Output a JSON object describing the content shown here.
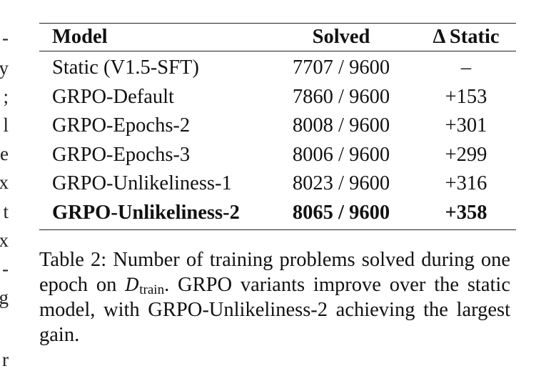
{
  "left_fragments": [
    "-",
    "y",
    ";",
    "l",
    "e",
    "x",
    "t",
    "x",
    "-",
    "g",
    "r"
  ],
  "table": {
    "headers": [
      "Model",
      "Solved",
      "Δ Static"
    ],
    "rows": [
      {
        "model": "Static (V1.5-SFT)",
        "solved": "7707 / 9600",
        "delta": "–",
        "bold": false
      },
      {
        "model": "GRPO-Default",
        "solved": "7860 / 9600",
        "delta": "+153",
        "bold": false
      },
      {
        "model": "GRPO-Epochs-2",
        "solved": "8008 / 9600",
        "delta": "+301",
        "bold": false
      },
      {
        "model": "GRPO-Epochs-3",
        "solved": "8006 / 9600",
        "delta": "+299",
        "bold": false
      },
      {
        "model": "GRPO-Unlikeliness-1",
        "solved": "8023 / 9600",
        "delta": "+316",
        "bold": false
      },
      {
        "model": "GRPO-Unlikeliness-2",
        "solved": "8065 / 9600",
        "delta": "+358",
        "bold": true
      }
    ]
  },
  "caption": {
    "prefix": "Table 2:  Number of training problems solved during one epoch on ",
    "symbol": "D",
    "subscript": "train",
    "suffix": ". GRPO variants improve over the static model, with GRPO-Unlikeliness-2 achieving the largest gain."
  }
}
